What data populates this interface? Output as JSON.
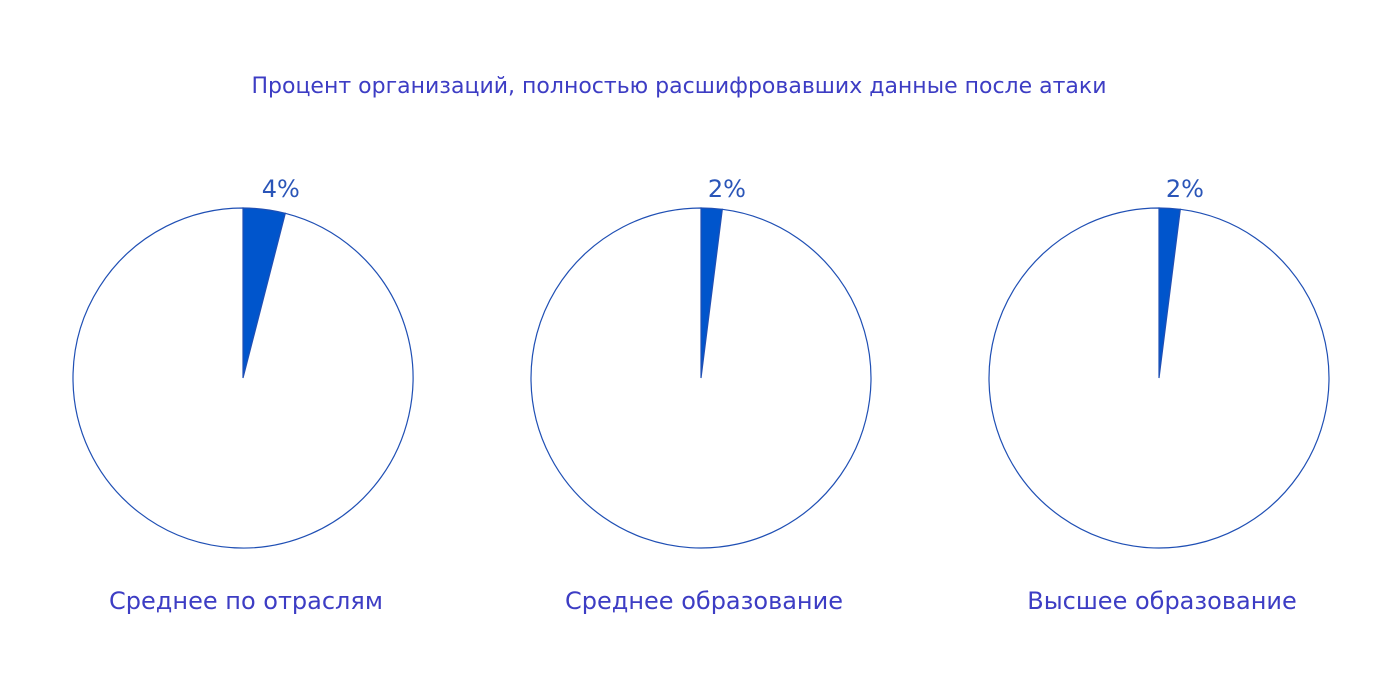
{
  "title": "Процент организаций, полностью расшифровавших данные после атаки",
  "chart_data": [
    {
      "type": "pie",
      "label": "Среднее по отраслям",
      "values": [
        4,
        96
      ],
      "value_labels": [
        "4%",
        null
      ],
      "colors": [
        "#0055cc",
        "#ffffff"
      ]
    },
    {
      "type": "pie",
      "label": "Среднее образование",
      "values": [
        2,
        98
      ],
      "value_labels": [
        "2%",
        null
      ],
      "colors": [
        "#0055cc",
        "#ffffff"
      ]
    },
    {
      "type": "pie",
      "label": "Высшее образование",
      "values": [
        2,
        98
      ],
      "value_labels": [
        "2%",
        null
      ],
      "colors": [
        "#0055cc",
        "#ffffff"
      ]
    }
  ]
}
